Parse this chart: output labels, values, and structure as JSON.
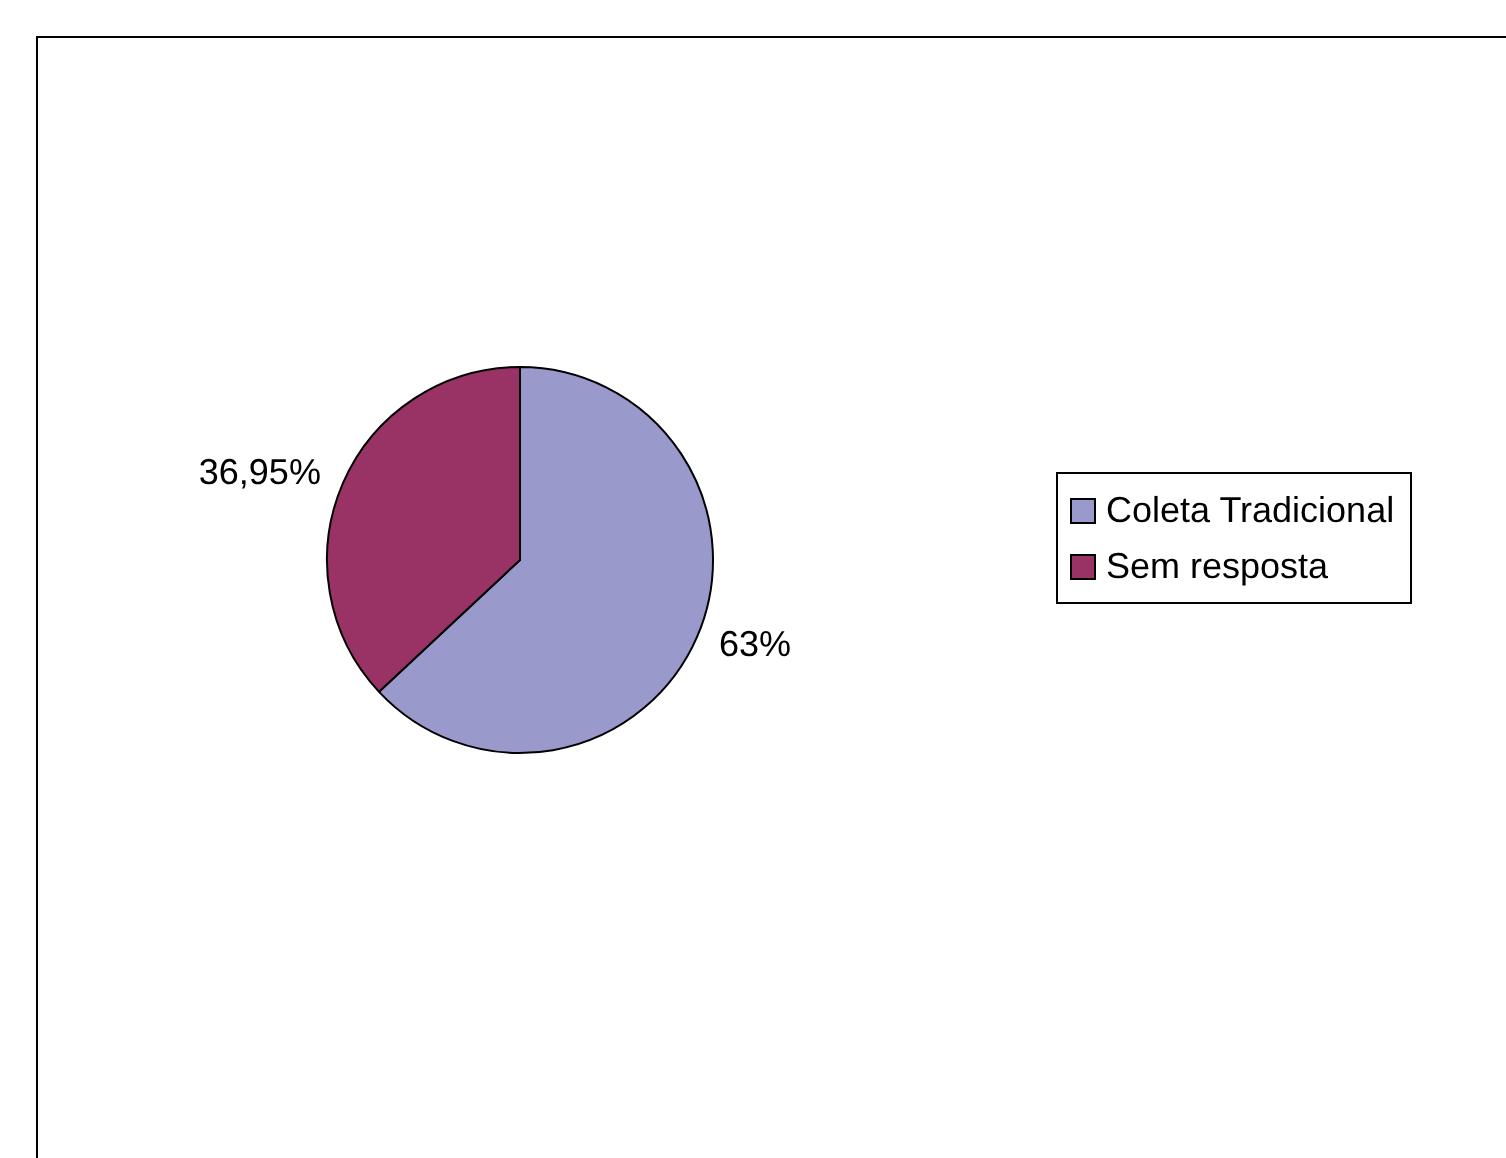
{
  "chart_data": {
    "type": "pie",
    "categories": [
      "Coleta Tradicional",
      "Sem resposta"
    ],
    "values": [
      63,
      36.95
    ],
    "colors": [
      "#9999cc",
      "#993366"
    ],
    "value_labels": [
      "63%",
      "36,95%"
    ],
    "legend": "right"
  }
}
